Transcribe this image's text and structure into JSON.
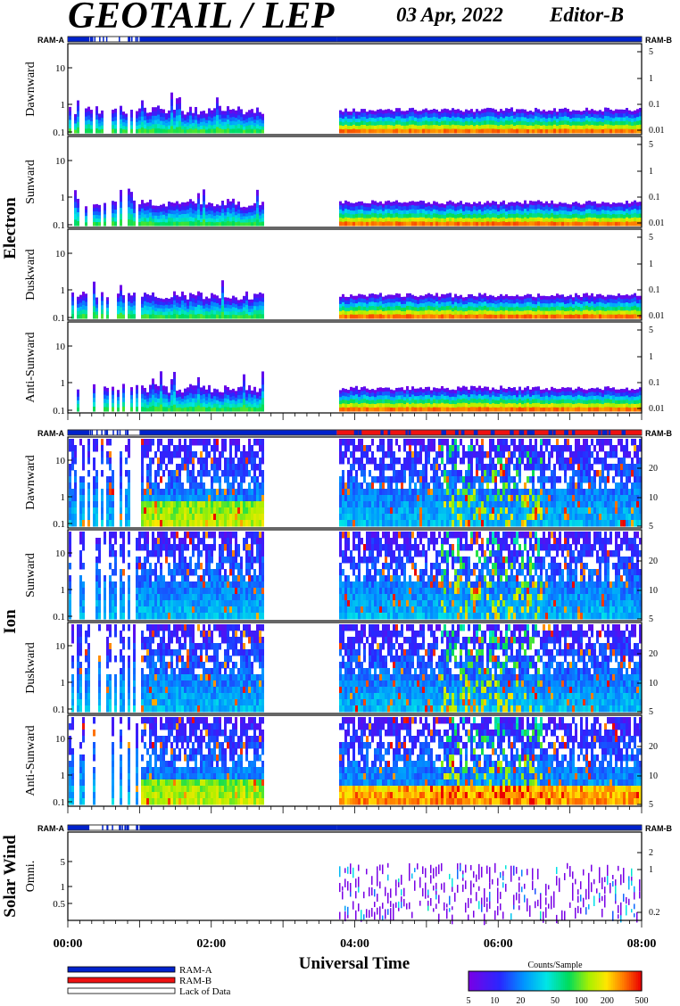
{
  "header": {
    "title": "GEOTAIL / LEP",
    "date": "03 Apr, 2022",
    "editor": "Editor-B"
  },
  "legend": {
    "items": [
      {
        "label": "RAM-A",
        "color": "#0022cc"
      },
      {
        "label": "RAM-B",
        "color": "#ee1111"
      },
      {
        "label": "Lack of Data",
        "color": "#ffffff"
      }
    ],
    "colorbar_title": "Counts/Sample",
    "colorbar_ticks": [
      "5",
      "10",
      "20",
      "50",
      "100",
      "200",
      "500"
    ]
  },
  "chart_data": {
    "type": "heatmap",
    "xlabel": "Universal Time",
    "x_ticks": [
      "00:00",
      "02:00",
      "04:00",
      "06:00",
      "08:00"
    ],
    "xlim_hours": [
      0,
      8
    ],
    "colors": {
      "ram_a": "#0022cc",
      "ram_b": "#ee1111",
      "gap_hours": [
        2.7,
        3.75
      ]
    },
    "groups": [
      {
        "name": "Electron",
        "mode_label_left": "RAM-A",
        "mode_label_right": "RAM-B",
        "mode_segments": [
          {
            "start": 0.0,
            "end": 0.3,
            "mode": "A"
          },
          {
            "start": 0.3,
            "end": 1.0,
            "mode": "gap"
          },
          {
            "start": 1.0,
            "end": 3.75,
            "mode": "A"
          },
          {
            "start": 3.75,
            "end": 8.0,
            "mode": "A"
          }
        ],
        "panels": [
          {
            "label": "Dawnward",
            "left_ticks": [
              "10",
              "1",
              "0.1"
            ],
            "right_ticks": [
              "5",
              "1",
              "0.1",
              "0.01"
            ]
          },
          {
            "label": "Sunward",
            "left_ticks": [
              "10",
              "1",
              "0.1"
            ],
            "right_ticks": [
              "5",
              "1",
              "0.1",
              "0.01"
            ]
          },
          {
            "label": "Duskward",
            "left_ticks": [
              "10",
              "1",
              "0.1"
            ],
            "right_ticks": [
              "5",
              "1",
              "0.1",
              "0.01"
            ]
          },
          {
            "label": "Anti-Sunward",
            "left_ticks": [
              "10",
              "1",
              "0.1"
            ],
            "right_ticks": [
              "5",
              "1",
              "0.1",
              "0.01"
            ]
          }
        ]
      },
      {
        "name": "Ion",
        "mode_label_left": "RAM-A",
        "mode_label_right": "RAM-B",
        "mode_segments": [
          {
            "start": 0.0,
            "end": 0.3,
            "mode": "A"
          },
          {
            "start": 0.3,
            "end": 1.0,
            "mode": "gap"
          },
          {
            "start": 1.0,
            "end": 3.75,
            "mode": "A"
          },
          {
            "start": 3.75,
            "end": 8.0,
            "mode": "B"
          }
        ],
        "panels": [
          {
            "label": "Dawnward",
            "left_ticks": [
              "10",
              "1",
              "0.1"
            ],
            "right_ticks": [
              "20",
              "10",
              "5"
            ]
          },
          {
            "label": "Sunward",
            "left_ticks": [
              "10",
              "1",
              "0.1"
            ],
            "right_ticks": [
              "20",
              "10",
              "5"
            ]
          },
          {
            "label": "Duskward",
            "left_ticks": [
              "10",
              "1",
              "0.1"
            ],
            "right_ticks": [
              "20",
              "10",
              "5"
            ]
          },
          {
            "label": "Anti-Sunward",
            "left_ticks": [
              "10",
              "1",
              "0.1"
            ],
            "right_ticks": [
              "20",
              "10",
              "5"
            ]
          }
        ]
      },
      {
        "name": "Solar Wind",
        "mode_label_left": "RAM-A",
        "mode_label_right": "RAM-B",
        "mode_segments": [
          {
            "start": 0.0,
            "end": 0.3,
            "mode": "A"
          },
          {
            "start": 0.3,
            "end": 1.0,
            "mode": "gap"
          },
          {
            "start": 1.0,
            "end": 3.75,
            "mode": "A"
          },
          {
            "start": 3.75,
            "end": 8.0,
            "mode": "A"
          }
        ],
        "panels": [
          {
            "label": "Omni.",
            "left_ticks": [
              "5",
              "1",
              "0.5"
            ],
            "right_ticks": [
              "2",
              "1",
              "0.2"
            ]
          }
        ]
      }
    ]
  }
}
